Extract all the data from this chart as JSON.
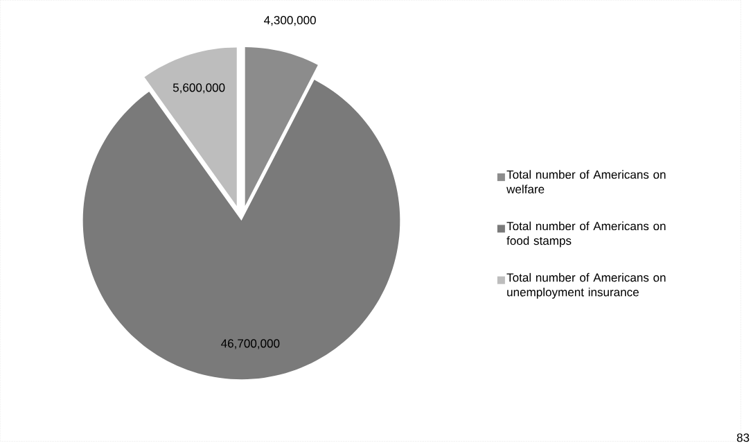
{
  "chart_data": {
    "type": "pie",
    "categories": [
      "Total number of Americans on welfare",
      "Total number of Americans on food stamps",
      "Total number of Americans on unemployment insurance"
    ],
    "values": [
      4300000,
      46700000,
      5600000
    ],
    "colors": [
      "#8c8c8c",
      "#7a7a7a",
      "#bdbdbd"
    ],
    "value_labels": [
      "4,300,000",
      "46,700,000",
      "5,600,000"
    ],
    "legend": "right",
    "annotations": [
      "83"
    ]
  }
}
